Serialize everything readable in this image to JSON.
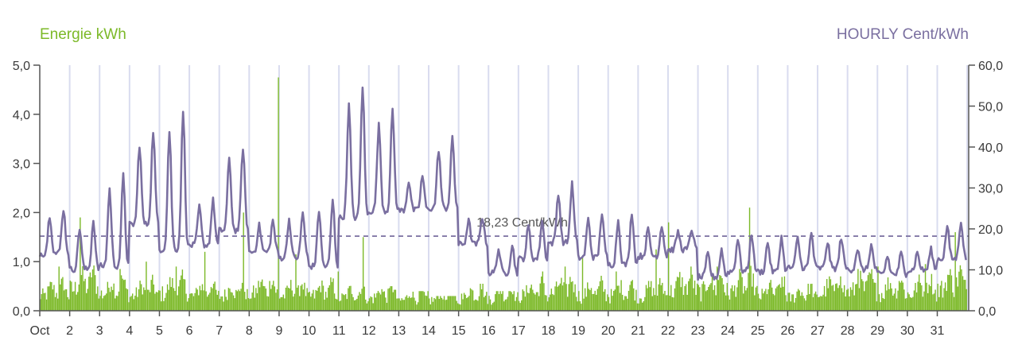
{
  "chart_data": {
    "type": "bar+line",
    "title": "",
    "left_axis": {
      "label": "Energie kWh",
      "range": [
        0,
        5
      ],
      "ticks": [
        "0,0",
        "1,0",
        "2,0",
        "3,0",
        "4,0",
        "5,0"
      ]
    },
    "right_axis": {
      "label": "HOURLY Cent/kWh",
      "range": [
        0,
        60
      ],
      "ticks": [
        "0,0",
        "10,0",
        "20,0",
        "30,0",
        "40,0",
        "50,0",
        "60,0"
      ]
    },
    "x_axis": {
      "month": "Oct",
      "day_labels": [
        "Oct",
        "2",
        "3",
        "4",
        "5",
        "6",
        "7",
        "8",
        "9",
        "10",
        "11",
        "12",
        "13",
        "14",
        "15",
        "16",
        "17",
        "18",
        "19",
        "20",
        "21",
        "22",
        "23",
        "24",
        "25",
        "26",
        "27",
        "28",
        "29",
        "30",
        "31"
      ],
      "days": 31,
      "vertical_grid": true
    },
    "average_line": {
      "value": 18.23,
      "label": "18,23 Cent/kWh"
    },
    "colors": {
      "energy": "#7cb928",
      "price": "#7a6fa0",
      "grid": "#d9dcef",
      "axis": "#555555"
    },
    "series": [
      {
        "name": "Energie kWh",
        "axis": "left",
        "kind": "bar",
        "resolution": "hourly",
        "daily_peak_kwh": [
          0.9,
          1.9,
          0.85,
          1.0,
          0.9,
          1.2,
          2.0,
          4.75,
          1.15,
          0.8,
          1.5,
          0.5,
          0.4,
          0.3,
          0.55,
          0.4,
          0.8,
          0.9,
          1.1,
          0.8,
          1.25,
          1.8,
          0.9,
          2.1,
          0.7,
          0.55,
          0.7,
          0.85,
          0.9,
          0.95,
          1.6
        ],
        "daily_base_kwh": [
          0.35,
          0.5,
          0.4,
          0.35,
          0.4,
          0.35,
          0.35,
          0.4,
          0.35,
          0.35,
          0.3,
          0.3,
          0.25,
          0.25,
          0.3,
          0.3,
          0.35,
          0.4,
          0.35,
          0.35,
          0.35,
          0.45,
          0.45,
          0.45,
          0.35,
          0.3,
          0.4,
          0.45,
          0.4,
          0.4,
          0.5
        ]
      },
      {
        "name": "HOURLY Cent/kWh",
        "axis": "right",
        "kind": "line",
        "daily_max_cent": [
          25,
          22,
          33,
          44,
          49,
          27,
          40,
          22,
          24,
          27,
          55,
          49,
          33,
          42,
          23,
          16,
          22,
          31,
          24,
          24,
          21,
          20,
          15,
          19,
          18,
          19,
          18,
          16,
          14,
          15,
          22
        ],
        "daily_min_cent": [
          12,
          8,
          7,
          17,
          9,
          14,
          16,
          13,
          11,
          8,
          17,
          20,
          23,
          22,
          15,
          8,
          11,
          14,
          11,
          9,
          12,
          14,
          7,
          8,
          8,
          9,
          9,
          9,
          8,
          9,
          11
        ]
      }
    ]
  }
}
